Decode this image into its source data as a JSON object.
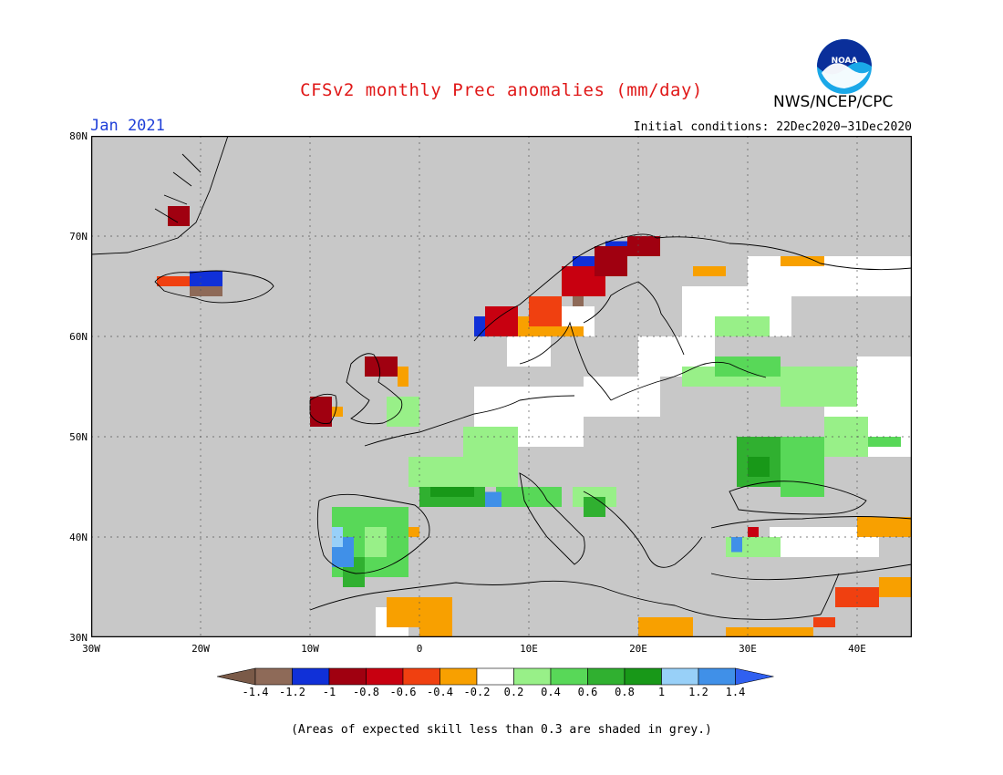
{
  "title": "CFSv2 monthly Prec anomalies (mm/day)",
  "agency": "NWS/NCEP/CPC",
  "logo_text": "NOAA",
  "month": "Jan 2021",
  "initial_conditions": "Initial conditions: 22Dec2020−31Dec2020",
  "footnote": "(Areas of expected skill less than 0.3 are shaded in grey.)",
  "map": {
    "lon_range": [
      -30,
      45
    ],
    "lat_range": [
      30,
      80
    ],
    "skill_mask_color": "#c8c8c8",
    "lat_labels": [
      "80N",
      "70N",
      "60N",
      "50N",
      "40N",
      "30N"
    ],
    "lon_labels": [
      "30W",
      "20W",
      "10W",
      "0",
      "10E",
      "20E",
      "30E",
      "40E"
    ]
  },
  "colorbar": {
    "labels": [
      "-1.4",
      "-1.2",
      "-1",
      "-0.8",
      "-0.6",
      "-0.4",
      "-0.2",
      "0.2",
      "0.4",
      "0.6",
      "0.8",
      "1",
      "1.2",
      "1.4"
    ],
    "colors": [
      "#7a5a48",
      "#8e6a58",
      "#1030d8",
      "#a00010",
      "#c80010",
      "#f04010",
      "#f8a000",
      "#ffffff",
      "#98f088",
      "#58d858",
      "#30b030",
      "#189818",
      "#98d0f8",
      "#4090e8",
      "#3060f0"
    ]
  },
  "anomaly_legend": {
    "brown": "#8e6a58",
    "blue": "#1030d8",
    "dark_red": "#a00010",
    "red": "#c80010",
    "orange_red": "#f04010",
    "orange": "#f8a000",
    "white": "#ffffff",
    "light_green": "#98f088",
    "green": "#58d858",
    "mid_green": "#30b030",
    "dark_green": "#189818",
    "light_blue": "#98d0f8",
    "sky_blue": "#4090e8"
  }
}
